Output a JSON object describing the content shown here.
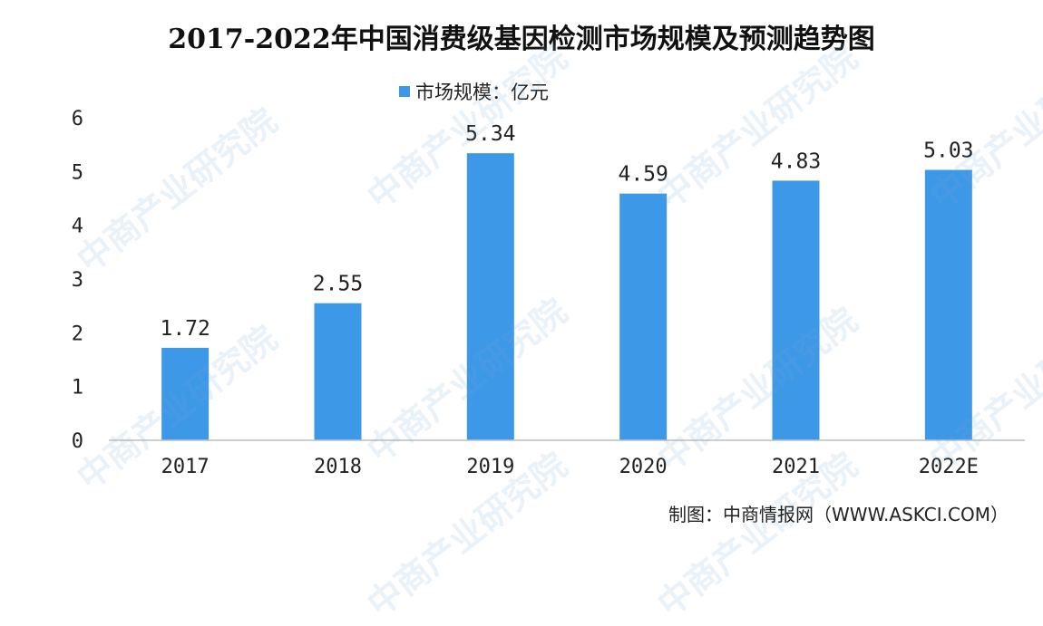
{
  "title": "2017-2022年中国消费级基因检测市场规模及预测趋势图",
  "legend": {
    "label": "市场规模：亿元"
  },
  "source": "制图：中商情报网（WWW.ASKCI.COM）",
  "watermark": "中商产业研究院",
  "colors": {
    "bar": "#3d98e8",
    "axis": "#bfbfbf",
    "text": "#222222"
  },
  "chart_data": {
    "type": "bar",
    "title": "2017-2022年中国消费级基因检测市场规模及预测趋势图",
    "categories": [
      "2017",
      "2018",
      "2019",
      "2020",
      "2021",
      "2022E"
    ],
    "series": [
      {
        "name": "市场规模：亿元",
        "values": [
          1.72,
          2.55,
          5.34,
          4.59,
          4.83,
          5.03
        ]
      }
    ],
    "value_labels": [
      "1.72",
      "2.55",
      "5.34",
      "4.59",
      "4.83",
      "5.03"
    ],
    "ylim": [
      0,
      6
    ],
    "yticks": [
      "0",
      "1",
      "2",
      "3",
      "4",
      "5",
      "6"
    ],
    "xlabel": "",
    "ylabel": "",
    "grid": false,
    "legend_position": "top-center"
  }
}
